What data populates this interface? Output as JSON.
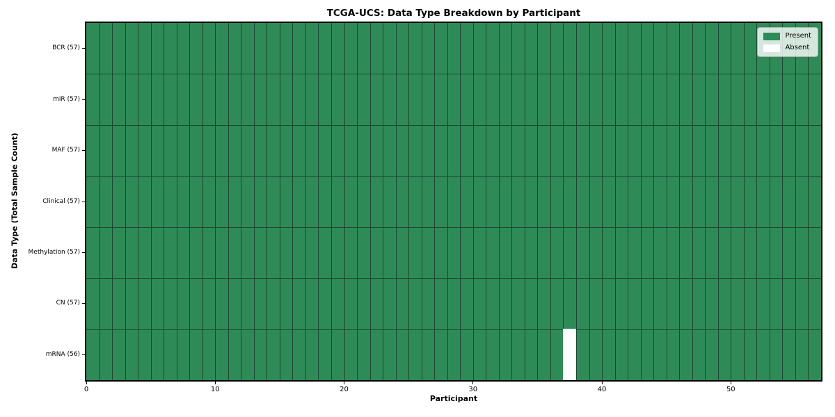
{
  "chart_data": {
    "type": "heatmap",
    "title": "TCGA-UCS: Data Type Breakdown by Participant",
    "xlabel": "Participant",
    "ylabel": "Data Type (Total Sample Count)",
    "x_ticks": [
      0,
      10,
      20,
      30,
      40,
      50
    ],
    "xlim": [
      0,
      57
    ],
    "n_participants": 57,
    "grid": "cell-edges",
    "legend_position": "upper right",
    "rows": [
      {
        "label": "BCR (57)",
        "present_count": 57,
        "absent_participants": []
      },
      {
        "label": "miR (57)",
        "present_count": 57,
        "absent_participants": []
      },
      {
        "label": "MAF (57)",
        "present_count": 57,
        "absent_participants": []
      },
      {
        "label": "Clinical (57)",
        "present_count": 57,
        "absent_participants": []
      },
      {
        "label": "Methylation (57)",
        "present_count": 57,
        "absent_participants": []
      },
      {
        "label": "CN (57)",
        "present_count": 57,
        "absent_participants": []
      },
      {
        "label": "mRNA (56)",
        "present_count": 56,
        "absent_participants": [
          37
        ]
      }
    ],
    "legend": [
      {
        "label": "Present",
        "color": "#2e8b57"
      },
      {
        "label": "Absent",
        "color": "#ffffff"
      }
    ],
    "colors": {
      "present": "#2e8b57",
      "absent": "#ffffff",
      "cell_edge": "#1c4630",
      "spine": "#000000",
      "legend_border": "#b0b0b0"
    }
  }
}
